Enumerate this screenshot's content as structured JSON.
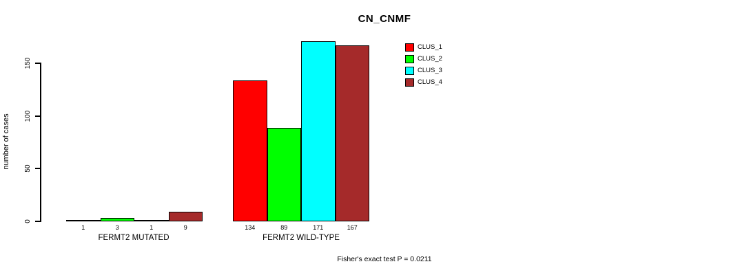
{
  "title": "CN_CNMF",
  "ylabel": "number of cases",
  "footer": "Fisher's exact test P = 0.0211",
  "colors": {
    "background": "#FFFFFF",
    "axis": "#000000",
    "clus_1": "#FF0000",
    "clus_2": "#00FF00",
    "clus_3": "#00FFFF",
    "clus_4": "#A52A2A"
  },
  "chart_data": {
    "type": "bar",
    "grouped": true,
    "title": "CN_CNMF",
    "xlabel": "",
    "ylabel": "number of cases",
    "categories": [
      "FERMT2 MUTATED",
      "FERMT2 WILD-TYPE"
    ],
    "series": [
      {
        "name": "CLUS_1",
        "color": "#FF0000",
        "values": [
          1,
          134
        ]
      },
      {
        "name": "CLUS_2",
        "color": "#00FF00",
        "values": [
          3,
          89
        ]
      },
      {
        "name": "CLUS_3",
        "color": "#00FFFF",
        "values": [
          1,
          171
        ]
      },
      {
        "name": "CLUS_4",
        "color": "#A52A2A",
        "values": [
          9,
          167
        ]
      }
    ],
    "bar_value_labels": [
      [
        "1",
        "3",
        "1",
        "9"
      ],
      [
        "134",
        "89",
        "171",
        "167"
      ]
    ],
    "yticks": [
      "0",
      "50",
      "100",
      "150"
    ],
    "ylim": [
      0,
      171
    ],
    "grid": false,
    "legend_position": "top-right",
    "annotation": "Fisher's exact test P = 0.0211"
  }
}
